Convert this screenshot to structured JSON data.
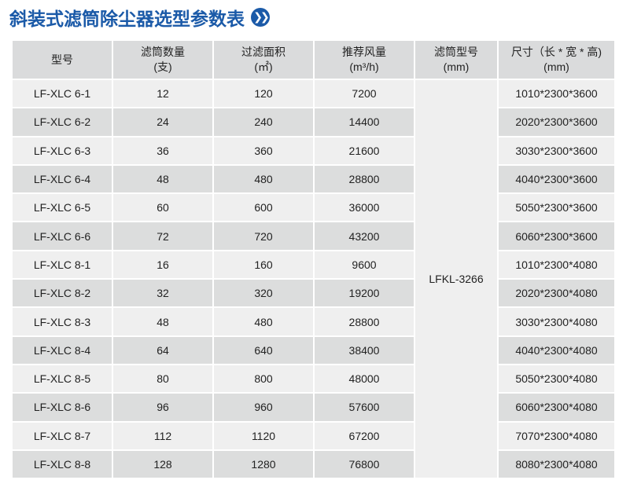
{
  "title": "斜装式滤筒除尘器选型参数表",
  "title_icon": "double-chevron-right-icon",
  "headers": [
    [
      "型号",
      ""
    ],
    [
      "滤筒数量",
      "(支)"
    ],
    [
      "过滤面积",
      "(㎡)"
    ],
    [
      "推荐风量",
      "(m³/h)"
    ],
    [
      "滤筒型号",
      "(mm)"
    ],
    [
      "尺寸（长 * 宽 * 高)",
      "(mm)"
    ]
  ],
  "filter_model": "LFKL-3266",
  "rows": [
    [
      "LF-XLC 6-1",
      "12",
      "120",
      "7200",
      "1010*2300*3600"
    ],
    [
      "LF-XLC 6-2",
      "24",
      "240",
      "14400",
      "2020*2300*3600"
    ],
    [
      "LF-XLC 6-3",
      "36",
      "360",
      "21600",
      "3030*2300*3600"
    ],
    [
      "LF-XLC 6-4",
      "48",
      "480",
      "28800",
      "4040*2300*3600"
    ],
    [
      "LF-XLC 6-5",
      "60",
      "600",
      "36000",
      "5050*2300*3600"
    ],
    [
      "LF-XLC 6-6",
      "72",
      "720",
      "43200",
      "6060*2300*3600"
    ],
    [
      "LF-XLC 8-1",
      "16",
      "160",
      "9600",
      "1010*2300*4080"
    ],
    [
      "LF-XLC 8-2",
      "32",
      "320",
      "19200",
      "2020*2300*4080"
    ],
    [
      "LF-XLC 8-3",
      "48",
      "480",
      "28800",
      "3030*2300*4080"
    ],
    [
      "LF-XLC 8-4",
      "64",
      "640",
      "38400",
      "4040*2300*4080"
    ],
    [
      "LF-XLC 8-5",
      "80",
      "800",
      "48000",
      "5050*2300*4080"
    ],
    [
      "LF-XLC 8-6",
      "96",
      "960",
      "57600",
      "6060*2300*4080"
    ],
    [
      "LF-XLC 8-7",
      "112",
      "1120",
      "67200",
      "7070*2300*4080"
    ],
    [
      "LF-XLC 8-8",
      "128",
      "1280",
      "76800",
      "8080*2300*4080"
    ]
  ]
}
